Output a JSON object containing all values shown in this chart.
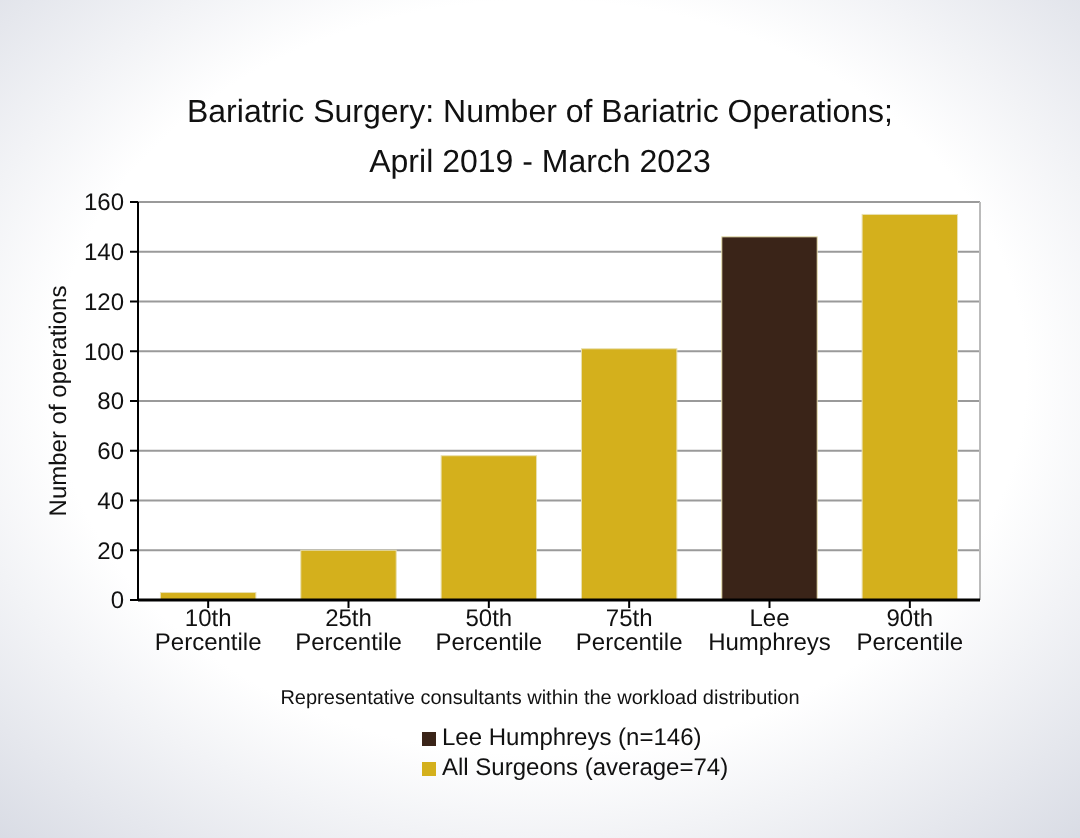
{
  "chart_data": {
    "type": "bar",
    "title": "Bariatric Surgery: Number of Bariatric Operations;\nApril 2019 - March 2023",
    "xlabel": "Representative consultants within the workload distribution",
    "ylabel": "Number of operations",
    "categories": [
      "10th Percentile",
      "25th Percentile",
      "50th Percentile",
      "75th Percentile",
      "Lee Humphreys",
      "90th Percentile"
    ],
    "series": [
      {
        "name": "Lee Humphreys (n=146)",
        "color": "#3a2418",
        "values": [
          null,
          null,
          null,
          null,
          146,
          null
        ]
      },
      {
        "name": "All Surgeons (average=74)",
        "color": "#d4b01c",
        "values": [
          3,
          20,
          58,
          101,
          null,
          155
        ]
      }
    ],
    "stacked": true,
    "ylim": [
      0,
      160
    ],
    "yticks": [
      0,
      20,
      40,
      60,
      80,
      100,
      120,
      140,
      160
    ],
    "grid": "y",
    "legend": "bottom"
  }
}
